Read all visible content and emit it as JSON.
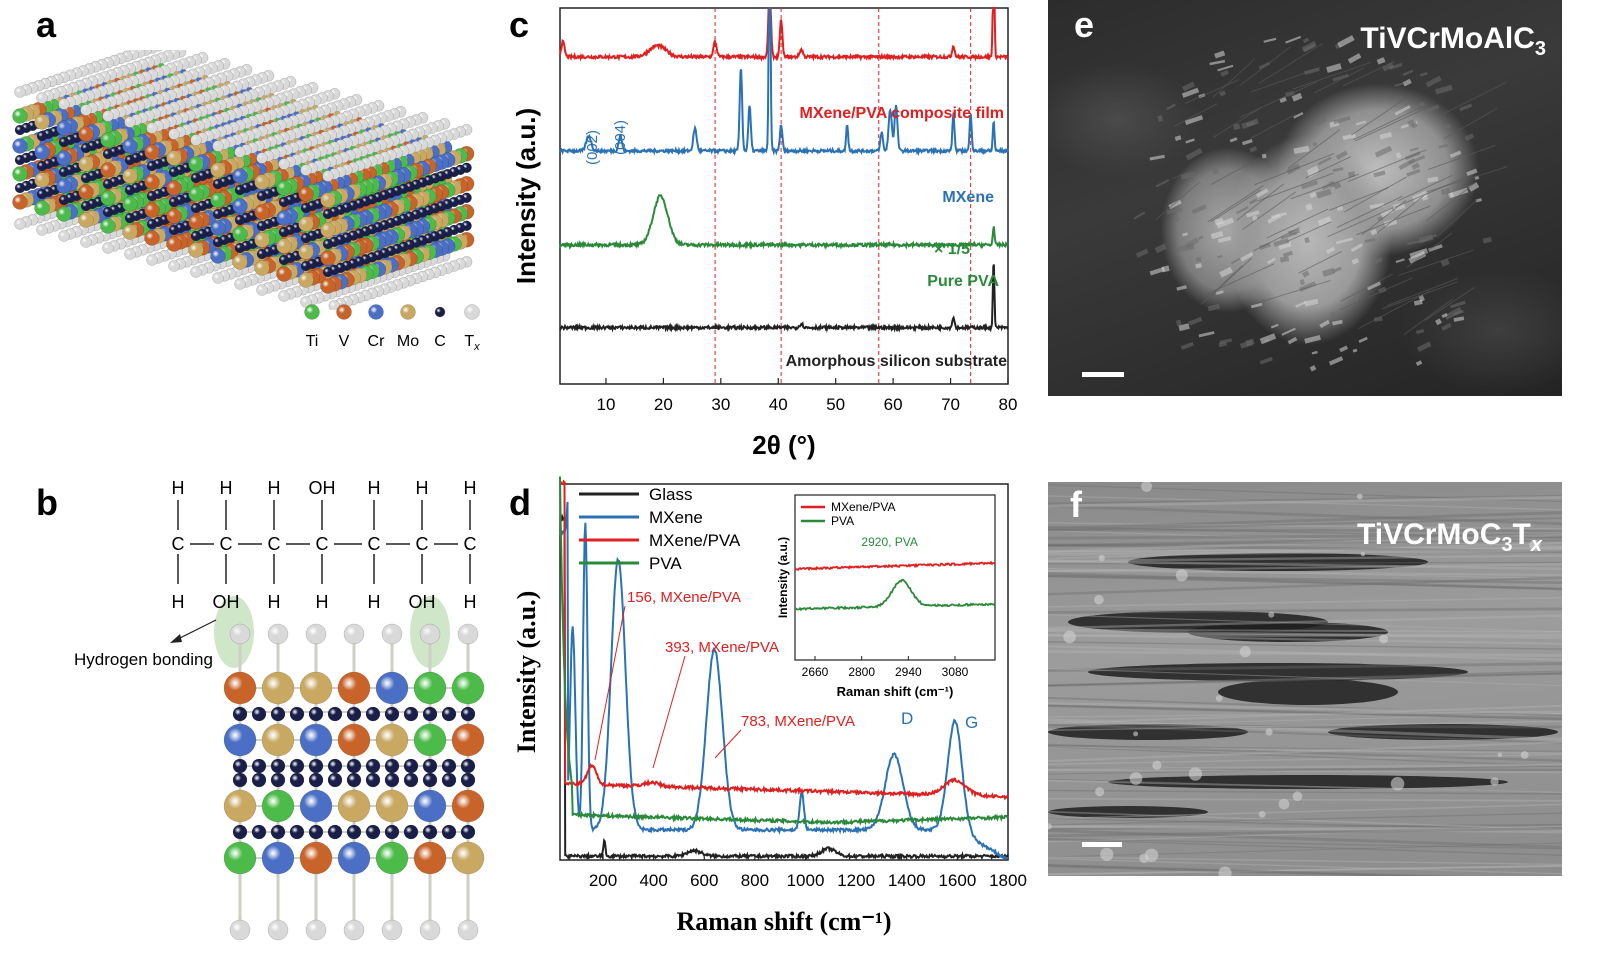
{
  "panels": {
    "a": {
      "letter": "a"
    },
    "b": {
      "letter": "b"
    },
    "c": {
      "letter": "c"
    },
    "d": {
      "letter": "d"
    },
    "e": {
      "letter": "e",
      "title_main": "TiVCrMoAlC",
      "title_sub": "3"
    },
    "f": {
      "letter": "f",
      "title_main": "TiVCrMoC",
      "title_sub": "3",
      "title_tail": "T",
      "title_tail_sub": "x"
    }
  },
  "colors": {
    "Ti": "#4cbb4a",
    "V": "#c8642a",
    "Cr": "#4a6fc4",
    "Mo": "#c9a862",
    "C": "#1a1f4a",
    "Tx": "#d9d9d9",
    "red": "#e02020",
    "blue": "#2a72b5",
    "green": "#2a8a3a",
    "black": "#222222",
    "guide": "#e02020"
  },
  "legend_a": [
    {
      "label": "Ti",
      "color_key": "Ti"
    },
    {
      "label": "V",
      "color_key": "V"
    },
    {
      "label": "Cr",
      "color_key": "Cr"
    },
    {
      "label": "Mo",
      "color_key": "Mo"
    },
    {
      "label": "C",
      "color_key": "C"
    },
    {
      "label": "T",
      "sub": "x",
      "color_key": "Tx"
    }
  ],
  "structure_b": {
    "top_row": [
      "H",
      "H",
      "H",
      "OH",
      "H",
      "H",
      "H"
    ],
    "mid_row": [
      "C",
      "C",
      "C",
      "C",
      "C",
      "C",
      "C"
    ],
    "bottom_row": [
      "H",
      "OH",
      "H",
      "H",
      "H",
      "OH",
      "H"
    ],
    "hbond_label": "Hydrogen bonding",
    "lattice_rows": [
      [
        "V",
        "Mo",
        "Mo",
        "V",
        "Cr",
        "Ti",
        "Ti"
      ],
      [
        "Cr",
        "Mo",
        "Cr",
        "V",
        "Mo",
        "Ti",
        "V"
      ],
      [
        "Mo",
        "Ti",
        "Cr",
        "Mo",
        "Mo",
        "Cr",
        "V"
      ],
      [
        "Ti",
        "Cr",
        "V",
        "Cr",
        "Ti",
        "V",
        "Mo"
      ]
    ]
  },
  "chart_data": [
    {
      "type": "line",
      "panel": "c",
      "xlabel": "2θ (°)",
      "ylabel": "Intensity (a.u.)",
      "xlim": [
        2,
        80
      ],
      "xticks": [
        10,
        20,
        30,
        40,
        50,
        60,
        70,
        80
      ],
      "guide_lines_x": [
        29,
        40.5,
        57.5,
        73.5
      ],
      "series": [
        {
          "name": "MXene/PVA composite film",
          "color_key": "red",
          "baseline": 0.87,
          "peaks": [
            [
              2.5,
              0.04,
              0.4
            ],
            [
              19,
              0.03,
              2
            ],
            [
              29,
              0.04,
              0.4
            ],
            [
              38.5,
              0.2,
              0.3
            ],
            [
              40.5,
              0.1,
              0.3
            ],
            [
              44,
              0.02,
              0.4
            ],
            [
              70.5,
              0.03,
              0.3
            ],
            [
              77.5,
              0.25,
              0.2
            ]
          ]
        },
        {
          "name": "MXene",
          "color_key": "blue",
          "baseline": 0.62,
          "annotations": [
            "(002)",
            "(004)"
          ],
          "peaks": [
            [
              7,
              0.04,
              0.6
            ],
            [
              12.5,
              0.04,
              0.4
            ],
            [
              25.5,
              0.06,
              0.4
            ],
            [
              33.5,
              0.22,
              0.3
            ],
            [
              35,
              0.12,
              0.3
            ],
            [
              38.5,
              0.55,
              0.22
            ],
            [
              40.5,
              0.07,
              0.3
            ],
            [
              52,
              0.07,
              0.25
            ],
            [
              58,
              0.05,
              0.3
            ],
            [
              59.5,
              0.11,
              0.4
            ],
            [
              60.5,
              0.12,
              0.35
            ],
            [
              70.5,
              0.1,
              0.25
            ],
            [
              73.5,
              0.1,
              0.25
            ],
            [
              77.5,
              0.08,
              0.2
            ]
          ]
        },
        {
          "name": "Pure PVA",
          "note": "× 1/5",
          "color_key": "green",
          "baseline": 0.37,
          "peaks": [
            [
              19.5,
              0.13,
              1.8
            ],
            [
              77.5,
              0.05,
              0.2
            ]
          ]
        },
        {
          "name": "Amorphous silicon substrate",
          "color_key": "black",
          "baseline": 0.15,
          "peaks": [
            [
              44,
              0.01,
              0.4
            ],
            [
              70.5,
              0.03,
              0.25
            ],
            [
              77.5,
              0.18,
              0.18
            ]
          ]
        }
      ]
    },
    {
      "type": "line",
      "panel": "d",
      "xlabel": "Raman shift (cm⁻¹)",
      "ylabel": "Intensity (a.u.)",
      "xlim": [
        30,
        1800
      ],
      "xticks": [
        200,
        400,
        600,
        800,
        1000,
        1200,
        1400,
        1600,
        1800
      ],
      "legend": [
        "Glass",
        "MXene",
        "MXene/PVA",
        "PVA"
      ],
      "series": [
        {
          "name": "Glass",
          "color_key": "black"
        },
        {
          "name": "MXene",
          "color_key": "blue"
        },
        {
          "name": "MXene/PVA",
          "color_key": "red"
        },
        {
          "name": "PVA",
          "color_key": "green"
        }
      ],
      "annotations": [
        {
          "text": "156, MXene/PVA",
          "x": 156
        },
        {
          "text": "393, MXene/PVA",
          "x": 393
        },
        {
          "text": "783, MXene/PVA",
          "x": 783
        },
        {
          "text": "D",
          "x": 1350
        },
        {
          "text": "G",
          "x": 1590
        }
      ],
      "inset": {
        "xlabel": "Raman shift (cm⁻¹)",
        "ylabel": "Intensity (a.u.)",
        "xlim": [
          2600,
          3200
        ],
        "xticks": [
          2660,
          2800,
          2940,
          3080
        ],
        "legend": [
          "MXene/PVA",
          "PVA"
        ],
        "annotation": "2920, PVA"
      }
    }
  ],
  "scale_bars": {
    "e": true,
    "f": true
  }
}
